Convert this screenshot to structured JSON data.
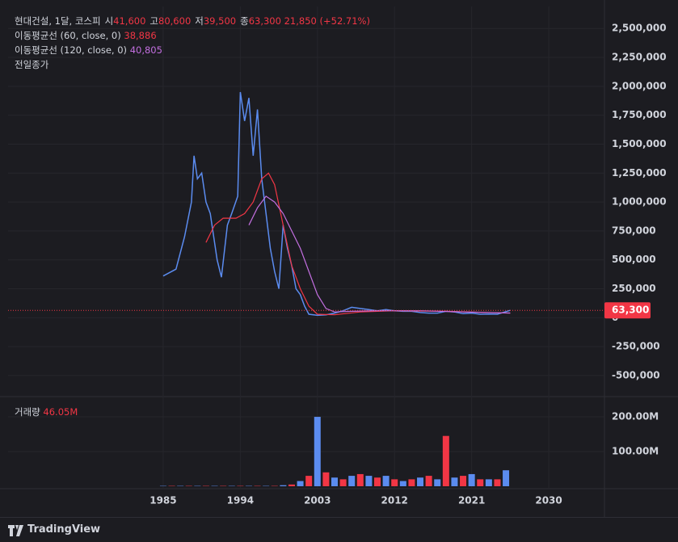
{
  "header": {
    "symbol": "현대건설, 1달, 코스피",
    "ohlc": [
      {
        "key": "시",
        "value": "41,600"
      },
      {
        "key": "고",
        "value": "80,600"
      },
      {
        "key": "저",
        "value": "39,500"
      },
      {
        "key": "종",
        "value": "63,300"
      }
    ],
    "change": "21,850 (+52.71%)",
    "ma60_value": "38,886",
    "ma120_value": "40,805",
    "prev_close": "전일종가"
  },
  "chart_data": [
    {
      "type": "line",
      "xlim": [
        1966.9,
        2036.5
      ],
      "ylim": [
        -675000,
        2690000
      ],
      "xticks": [
        1985,
        1994,
        2003,
        2012,
        2021,
        2030
      ],
      "yticks": [
        {
          "value": -500000,
          "label": "-500,000"
        },
        {
          "value": -250000,
          "label": "-250,000"
        },
        0,
        {
          "value": 250000,
          "label": "250,000"
        },
        {
          "value": 500000,
          "label": "500,000"
        },
        {
          "value": 750000,
          "label": "750,000"
        },
        {
          "value": 1000000,
          "label": "1,000,000"
        },
        {
          "value": 1250000,
          "label": "1,250,000"
        },
        {
          "value": 1500000,
          "label": "1,500,000"
        },
        {
          "value": 1750000,
          "label": "1,750,000"
        },
        {
          "value": 2000000,
          "label": "2,000,000"
        },
        {
          "value": 2250000,
          "label": "2,250,000"
        },
        {
          "value": 2500000,
          "label": "2,500,000"
        }
      ],
      "grid": true,
      "series": [
        {
          "name": "현대건설, 1달, 코스피",
          "color": "#5b8cf0",
          "x": [
            1985,
            1986.5,
            1987.5,
            1988.3,
            1988.6,
            1989,
            1989.5,
            1990,
            1990.5,
            1991.3,
            1991.8,
            1992.5,
            1993,
            1993.7,
            1994,
            1994.5,
            1995,
            1995.5,
            1996,
            1996.5,
            1997,
            1997.5,
            1998,
            1998.5,
            1999,
            1999.5,
            2000,
            2000.5,
            2001,
            2001.5,
            2002,
            2003,
            2004,
            2005,
            2006,
            2007,
            2008,
            2009,
            2010,
            2011,
            2012,
            2013,
            2014,
            2015,
            2016,
            2017,
            2018,
            2019,
            2020,
            2021,
            2022,
            2023,
            2024,
            2025.5
          ],
          "values": [
            360000,
            420000,
            700000,
            1000000,
            1400000,
            1200000,
            1250000,
            1000000,
            900000,
            500000,
            350000,
            800000,
            900000,
            1050000,
            1950000,
            1700000,
            1900000,
            1400000,
            1800000,
            1200000,
            900000,
            600000,
            400000,
            250000,
            800000,
            600000,
            450000,
            250000,
            200000,
            100000,
            30000,
            20000,
            25000,
            40000,
            60000,
            90000,
            80000,
            70000,
            60000,
            70000,
            60000,
            55000,
            55000,
            45000,
            40000,
            40000,
            55000,
            50000,
            35000,
            40000,
            30000,
            32000,
            30000,
            63300
          ]
        },
        {
          "name": "이동평균선 (60, close, 0)",
          "color": "#f23645",
          "x": [
            1990,
            1991,
            1992,
            1993.5,
            1994.5,
            1995.5,
            1996.5,
            1997.3,
            1998,
            1999,
            2000,
            2001,
            2002,
            2003,
            2005,
            2008,
            2012,
            2018,
            2025.5
          ],
          "values": [
            650000,
            800000,
            860000,
            860000,
            900000,
            1000000,
            1200000,
            1250000,
            1150000,
            800000,
            450000,
            250000,
            100000,
            30000,
            25000,
            50000,
            60000,
            55000,
            38886
          ]
        },
        {
          "name": "이동평균선 (120, close, 0)",
          "color": "#c36fe0",
          "x": [
            1995,
            1996,
            1997,
            1998,
            1999,
            2000,
            2001,
            2002,
            2003,
            2004,
            2005,
            2007,
            2010,
            2015,
            2020,
            2025.5
          ],
          "values": [
            800000,
            950000,
            1050000,
            1000000,
            900000,
            750000,
            600000,
            400000,
            200000,
            80000,
            50000,
            55000,
            60000,
            60000,
            50000,
            40805
          ]
        }
      ],
      "last_price": {
        "value": 63300,
        "label": "63,300"
      }
    },
    {
      "type": "bar",
      "title": "거래량",
      "color": "#5b8cf0",
      "xlim": [
        1966.9,
        2036.5
      ],
      "ylim": [
        -4700000,
        256000000
      ],
      "xticks": [
        1985,
        1994,
        2003,
        2012,
        2021,
        2030
      ],
      "yticks": [
        {
          "value": 100000000,
          "label": "100.00M"
        },
        {
          "value": 200000000,
          "label": "200.00M"
        }
      ],
      "x": [
        1985,
        1986,
        1987,
        1988,
        1989,
        1990,
        1991,
        1992,
        1993,
        1994,
        1995,
        1996,
        1997,
        1998,
        1999,
        2000,
        2001,
        2002,
        2003,
        2004,
        2005,
        2006,
        2007,
        2008,
        2009,
        2010,
        2011,
        2012,
        2013,
        2014,
        2015,
        2016,
        2017,
        2018,
        2019,
        2020,
        2021,
        2022,
        2023,
        2024,
        2025
      ],
      "values": [
        1000000,
        1000000,
        1000000,
        1000000,
        1000000,
        1000000,
        1000000,
        1000000,
        1000000,
        1000000,
        1000000,
        1000000,
        1000000,
        1000000,
        3000000,
        5000000,
        15000000,
        30000000,
        200000000,
        40000000,
        25000000,
        20000000,
        30000000,
        35000000,
        30000000,
        25000000,
        30000000,
        20000000,
        15000000,
        20000000,
        25000000,
        30000000,
        20000000,
        145000000,
        25000000,
        30000000,
        35000000,
        20000000,
        20000000,
        20000000,
        46050000
      ],
      "legend_value": {
        "value": 46050000,
        "label": "46.05M"
      }
    }
  ],
  "footer": {
    "brand": "TradingView"
  }
}
